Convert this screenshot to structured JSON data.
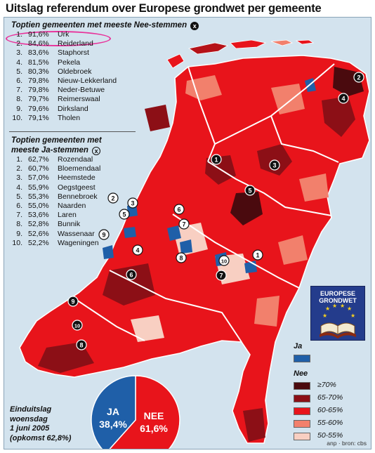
{
  "title": "Uitslag referendum over Europese grondwet per gemeente",
  "nee_list": {
    "heading": "Toptien gemeenten met meeste Nee-stemmen",
    "marker": "x",
    "rows": [
      {
        "rank": "1.",
        "pct": "91,6%",
        "town": "Urk"
      },
      {
        "rank": "2.",
        "pct": "84,6%",
        "town": "Reiderland"
      },
      {
        "rank": "3.",
        "pct": "83,6%",
        "town": "Staphorst"
      },
      {
        "rank": "4.",
        "pct": "81,5%",
        "town": "Pekela"
      },
      {
        "rank": "5.",
        "pct": "80,3%",
        "town": "Oldebroek"
      },
      {
        "rank": "6.",
        "pct": "79,8%",
        "town": "Nieuw-Lekkerland"
      },
      {
        "rank": "7.",
        "pct": "79,8%",
        "town": "Neder-Betuwe"
      },
      {
        "rank": "8.",
        "pct": "79,7%",
        "town": "Reimerswaal"
      },
      {
        "rank": "9.",
        "pct": "79,6%",
        "town": "Dirksland"
      },
      {
        "rank": "10.",
        "pct": "79,1%",
        "town": "Tholen"
      }
    ]
  },
  "ja_list": {
    "heading_line1": "Toptien gemeenten met",
    "heading_line2": "meeste Ja-stemmen",
    "marker": "x",
    "rows": [
      {
        "rank": "1.",
        "pct": "62,7%",
        "town": "Rozendaal"
      },
      {
        "rank": "2.",
        "pct": "60,7%",
        "town": "Bloemendaal"
      },
      {
        "rank": "3.",
        "pct": "57,0%",
        "town": "Heemstede"
      },
      {
        "rank": "4.",
        "pct": "55,9%",
        "town": "Oegstgeest"
      },
      {
        "rank": "5.",
        "pct": "55,3%",
        "town": "Bennebroek"
      },
      {
        "rank": "6.",
        "pct": "55,0%",
        "town": "Naarden"
      },
      {
        "rank": "7.",
        "pct": "53,6%",
        "town": "Laren"
      },
      {
        "rank": "8.",
        "pct": "52,8%",
        "town": "Bunnik"
      },
      {
        "rank": "9.",
        "pct": "52,6%",
        "town": "Wassenaar"
      },
      {
        "rank": "10.",
        "pct": "52,2%",
        "town": "Wageningen"
      }
    ]
  },
  "legend": {
    "ja_label": "Ja",
    "nee_label": "Nee",
    "ja_color": "#1f5fa8",
    "classes": [
      {
        "label": "≥70%",
        "color": "#4a0a0e"
      },
      {
        "label": "65-70%",
        "color": "#8c0f16"
      },
      {
        "label": "60-65%",
        "color": "#e8141b"
      },
      {
        "label": "55-60%",
        "color": "#f2806c"
      },
      {
        "label": "50-55%",
        "color": "#f8cfc2"
      }
    ]
  },
  "logo": {
    "line1": "EUROPESE",
    "line2": "GRONDWET"
  },
  "result": {
    "caption_lines": [
      "Einduitslag",
      "woensdag",
      "1 juni 2005",
      "(opkomst 62,8%)"
    ],
    "ja_label": "JA",
    "ja_pct_text": "38,4%",
    "nee_label": "NEE",
    "nee_pct_text": "61,6%",
    "ja_share": 38.4,
    "nee_share": 61.6,
    "ja_color": "#1f5fa8",
    "nee_color": "#e8141b"
  },
  "map_markers": {
    "nee": [
      "1",
      "2",
      "3",
      "4",
      "5",
      "6",
      "7",
      "8",
      "9",
      "10"
    ],
    "ja": [
      "1",
      "2",
      "3",
      "4",
      "5",
      "6",
      "7",
      "8",
      "9",
      "10"
    ]
  },
  "source": "anp · bron: cbs"
}
